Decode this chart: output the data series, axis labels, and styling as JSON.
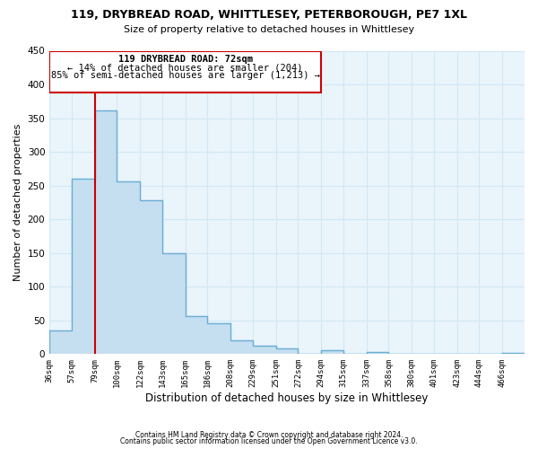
{
  "title": "119, DRYBREAD ROAD, WHITTLESEY, PETERBOROUGH, PE7 1XL",
  "subtitle": "Size of property relative to detached houses in Whittlesey",
  "xlabel": "Distribution of detached houses by size in Whittlesey",
  "ylabel": "Number of detached properties",
  "bin_labels": [
    "36sqm",
    "57sqm",
    "79sqm",
    "100sqm",
    "122sqm",
    "143sqm",
    "165sqm",
    "186sqm",
    "208sqm",
    "229sqm",
    "251sqm",
    "272sqm",
    "294sqm",
    "315sqm",
    "337sqm",
    "358sqm",
    "380sqm",
    "401sqm",
    "423sqm",
    "444sqm",
    "466sqm"
  ],
  "bar_heights": [
    35,
    260,
    362,
    256,
    228,
    149,
    57,
    46,
    21,
    12,
    8,
    0,
    6,
    0,
    3,
    0,
    0,
    0,
    0,
    0,
    2
  ],
  "bar_color": "#c5dff0",
  "bar_edge_color": "#6aaed6",
  "property_label": "119 DRYBREAD ROAD: 72sqm",
  "annotation_line1": "← 14% of detached houses are smaller (204)",
  "annotation_line2": "85% of semi-detached houses are larger (1,213) →",
  "vline_color": "#cc0000",
  "box_rect_color": "#cc0000",
  "ylim": [
    0,
    450
  ],
  "yticks": [
    0,
    50,
    100,
    150,
    200,
    250,
    300,
    350,
    400,
    450
  ],
  "footnote1": "Contains HM Land Registry data © Crown copyright and database right 2024.",
  "footnote2": "Contains public sector information licensed under the Open Government Licence v3.0.",
  "bin_edges": [
    36,
    57,
    79,
    100,
    122,
    143,
    165,
    186,
    208,
    229,
    251,
    272,
    294,
    315,
    337,
    358,
    380,
    401,
    423,
    444,
    466,
    487
  ],
  "grid_color": "#d0e8f5",
  "bg_color": "#eaf4fb"
}
